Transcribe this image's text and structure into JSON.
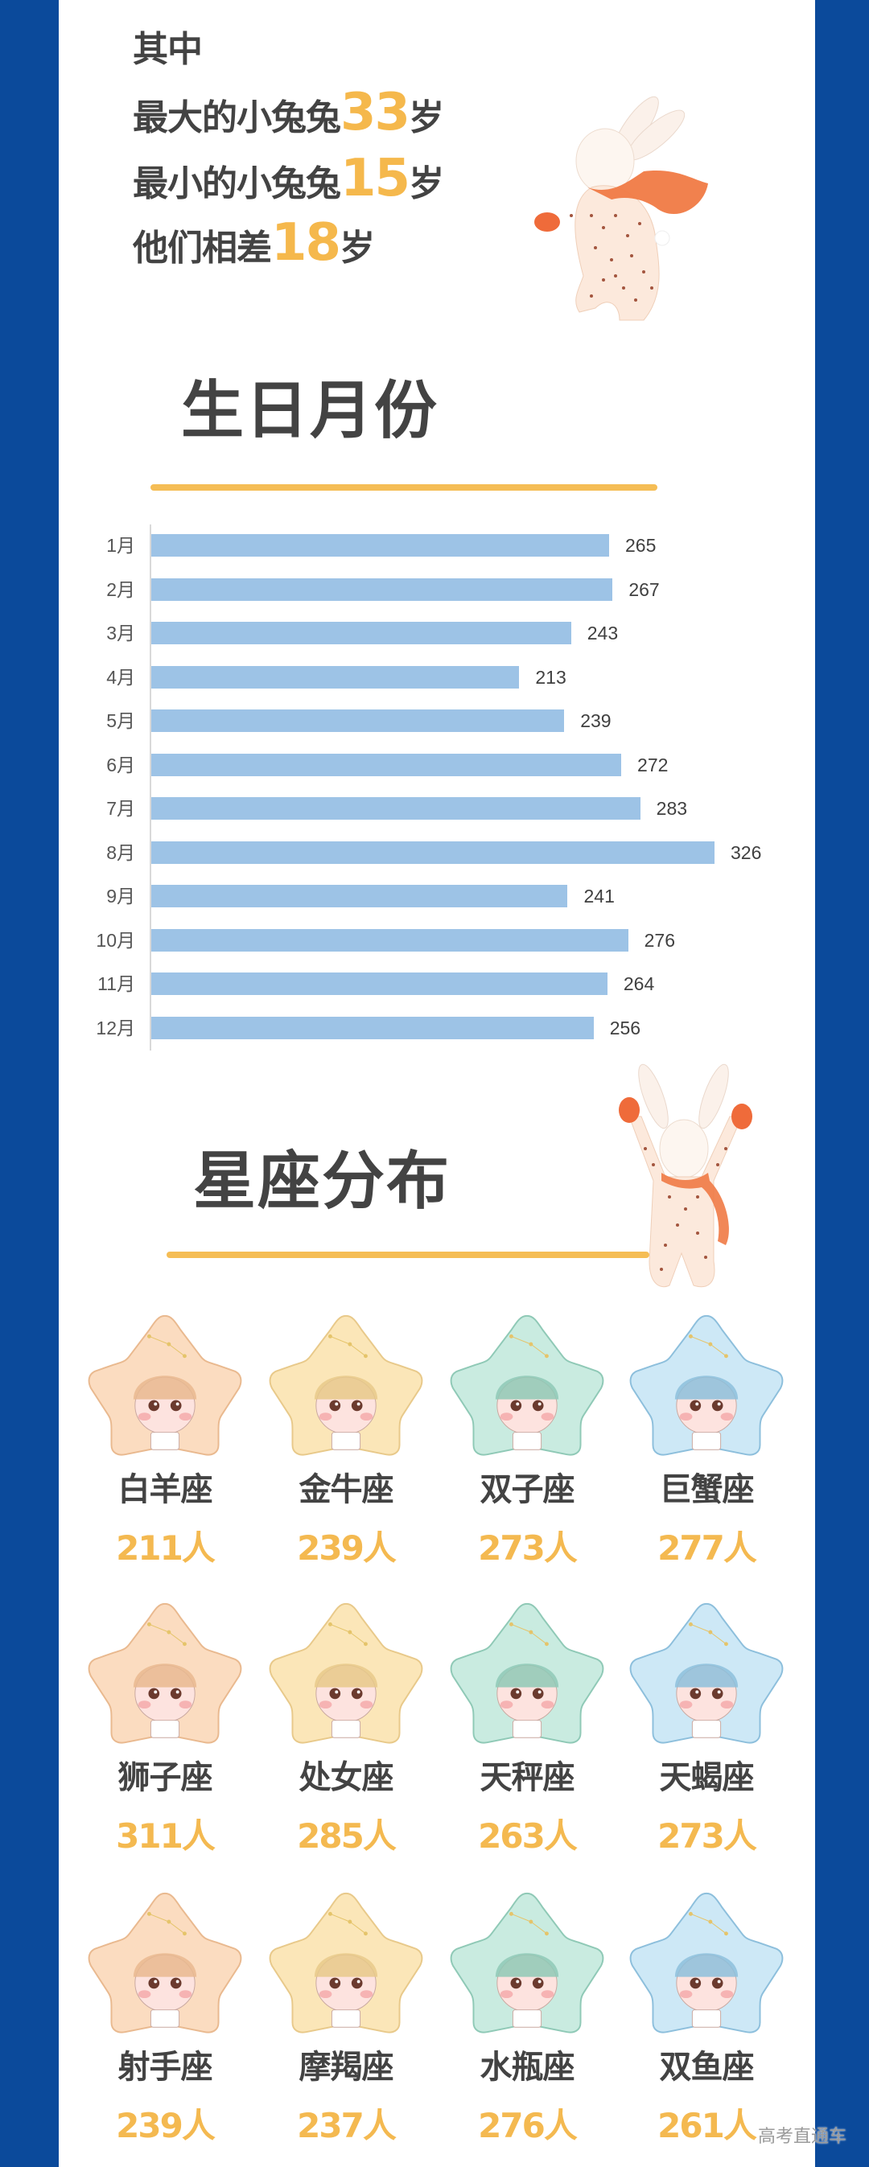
{
  "colors": {
    "frame_blue": "#0b4a9b",
    "panel_white": "#ffffff",
    "text_dark": "#434343",
    "accent_gold": "#f5b84c",
    "bar_blue": "#9dc3e6"
  },
  "intro": {
    "line1": "其中",
    "line2": {
      "prefix": "最大的小兔兔",
      "number": "33",
      "suffix": "岁"
    },
    "line3": {
      "prefix": "最小的小兔兔",
      "number": "15",
      "suffix": "岁"
    },
    "line4": {
      "prefix": "他们相差",
      "number": "18",
      "suffix": "岁"
    }
  },
  "birthday_section": {
    "title": "生日月份"
  },
  "zodiac_section": {
    "title": "星座分布",
    "items": [
      {
        "name": "白羊座",
        "count": "211人",
        "bg": "#fbdcc0",
        "edge": "#e9b98f"
      },
      {
        "name": "金牛座",
        "count": "239人",
        "bg": "#fbe6b8",
        "edge": "#e8c98a"
      },
      {
        "name": "双子座",
        "count": "273人",
        "bg": "#c9ebe0",
        "edge": "#8fc9b6"
      },
      {
        "name": "巨蟹座",
        "count": "277人",
        "bg": "#cde8f6",
        "edge": "#8dbfdc"
      },
      {
        "name": "狮子座",
        "count": "311人",
        "bg": "#fbdcc0",
        "edge": "#e9b98f"
      },
      {
        "name": "处女座",
        "count": "285人",
        "bg": "#fbe6b8",
        "edge": "#e8c98a"
      },
      {
        "name": "天秤座",
        "count": "263人",
        "bg": "#c9ebe0",
        "edge": "#8fc9b6"
      },
      {
        "name": "天蝎座",
        "count": "273人",
        "bg": "#cde8f6",
        "edge": "#8dbfdc"
      },
      {
        "name": "射手座",
        "count": "239人",
        "bg": "#fbdcc0",
        "edge": "#e9b98f"
      },
      {
        "name": "摩羯座",
        "count": "237人",
        "bg": "#fbe6b8",
        "edge": "#e8c98a"
      },
      {
        "name": "水瓶座",
        "count": "276人",
        "bg": "#c9ebe0",
        "edge": "#8fc9b6"
      },
      {
        "name": "双鱼座",
        "count": "261人",
        "bg": "#cde8f6",
        "edge": "#8dbfdc"
      }
    ]
  },
  "watermark": "高考直通车",
  "chart_data": [
    {
      "type": "bar",
      "orientation": "horizontal",
      "title": "生日月份",
      "categories": [
        "1月",
        "2月",
        "3月",
        "4月",
        "5月",
        "6月",
        "7月",
        "8月",
        "9月",
        "10月",
        "11月",
        "12月"
      ],
      "values": [
        265,
        267,
        243,
        213,
        239,
        272,
        283,
        326,
        241,
        276,
        264,
        256
      ],
      "xlabel": "",
      "ylabel": "",
      "data_labels": true,
      "grid": false,
      "legend": null
    },
    {
      "type": "table",
      "title": "星座分布",
      "categories": [
        "白羊座",
        "金牛座",
        "双子座",
        "巨蟹座",
        "狮子座",
        "处女座",
        "天秤座",
        "天蝎座",
        "射手座",
        "摩羯座",
        "水瓶座",
        "双鱼座"
      ],
      "values": [
        211,
        239,
        273,
        277,
        311,
        285,
        263,
        273,
        239,
        237,
        276,
        261
      ],
      "unit": "人"
    }
  ]
}
